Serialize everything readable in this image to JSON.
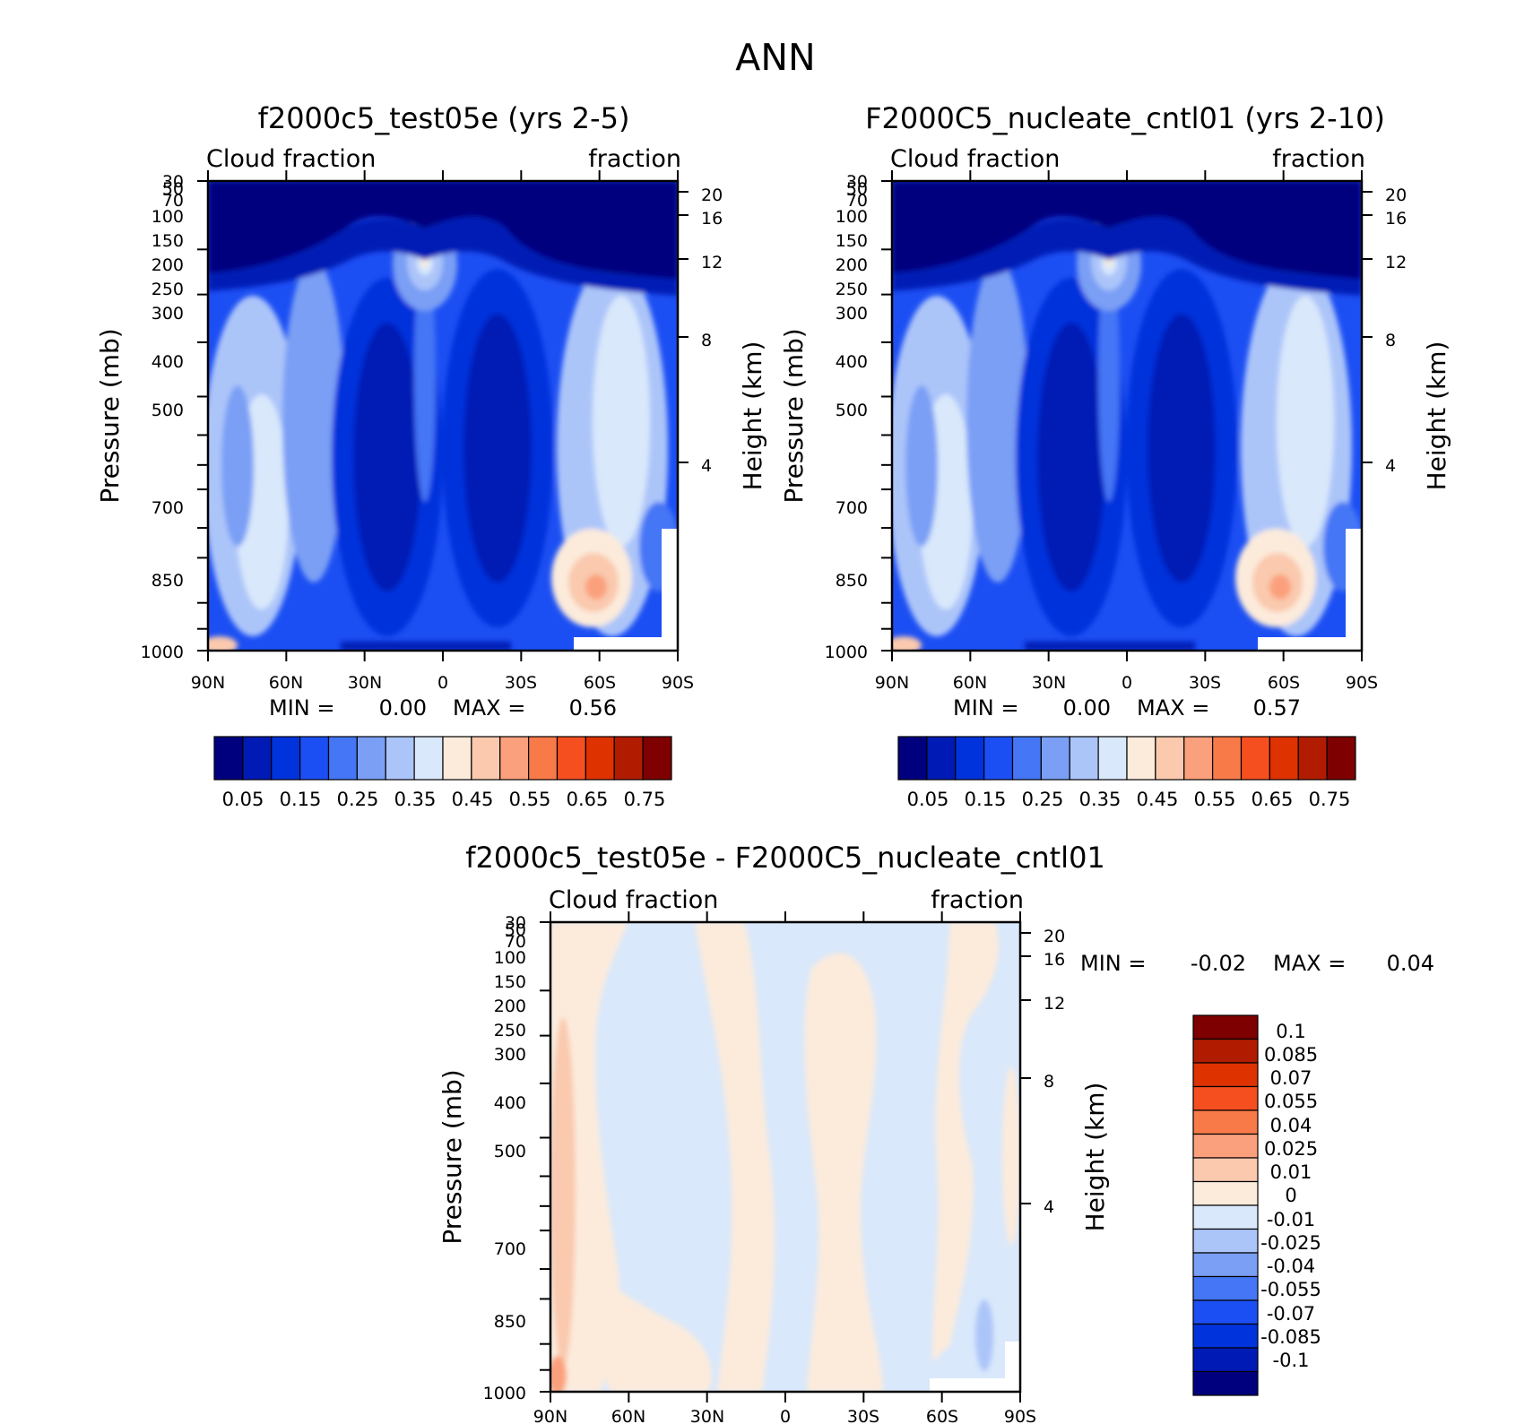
{
  "figure": {
    "title": "ANN"
  },
  "colors": {
    "scale": [
      "#00007f",
      "#001ab5",
      "#0033dc",
      "#1c4ff3",
      "#4476f5",
      "#7a9ff5",
      "#acc5f9",
      "#d9e8fb",
      "#fcebdb",
      "#fac9ae",
      "#fba07c",
      "#f87a49",
      "#f64f1f",
      "#de3200",
      "#b11c00",
      "#7e0000"
    ]
  },
  "chart_data": [
    {
      "type": "contour",
      "title": "f2000c5_test05e (yrs 2-5)",
      "left_label": "Cloud fraction",
      "right_label": "fraction",
      "ylabel": "Pressure (mb)",
      "y2label": "Height (km)",
      "y_ticks": [
        "30",
        "50",
        "70",
        "100",
        "150",
        "200",
        "250",
        "300",
        "400",
        "500",
        "700",
        "850",
        "1000"
      ],
      "y2_ticks": [
        "20",
        "16",
        "12",
        "8",
        "4"
      ],
      "x_ticks": [
        "90N",
        "60N",
        "30N",
        "0",
        "30S",
        "60S",
        "90S"
      ],
      "min_label": "MIN =",
      "min_value": "0.00",
      "max_label": "MAX =",
      "max_value": "0.56",
      "colorbar_labels": [
        "0.05",
        "0.15",
        "0.25",
        "0.35",
        "0.45",
        "0.55",
        "0.65",
        "0.75"
      ],
      "contour_levels": [
        0.05,
        0.1,
        0.15,
        0.2,
        0.25,
        0.3,
        0.35,
        0.4,
        0.45,
        0.5,
        0.55,
        0.6,
        0.65,
        0.7,
        0.75
      ],
      "ylim": [
        1000,
        30
      ],
      "xlim": [
        "90N",
        "90S"
      ]
    },
    {
      "type": "contour",
      "title": "F2000C5_nucleate_cntl01 (yrs 2-10)",
      "left_label": "Cloud fraction",
      "right_label": "fraction",
      "ylabel": "Pressure (mb)",
      "y2label": "Height (km)",
      "y_ticks": [
        "30",
        "50",
        "70",
        "100",
        "150",
        "200",
        "250",
        "300",
        "400",
        "500",
        "700",
        "850",
        "1000"
      ],
      "y2_ticks": [
        "20",
        "16",
        "12",
        "8",
        "4"
      ],
      "x_ticks": [
        "90N",
        "60N",
        "30N",
        "0",
        "30S",
        "60S",
        "90S"
      ],
      "min_label": "MIN =",
      "min_value": "0.00",
      "max_label": "MAX =",
      "max_value": "0.57",
      "colorbar_labels": [
        "0.05",
        "0.15",
        "0.25",
        "0.35",
        "0.45",
        "0.55",
        "0.65",
        "0.75"
      ],
      "contour_levels": [
        0.05,
        0.1,
        0.15,
        0.2,
        0.25,
        0.3,
        0.35,
        0.4,
        0.45,
        0.5,
        0.55,
        0.6,
        0.65,
        0.7,
        0.75
      ],
      "ylim": [
        1000,
        30
      ],
      "xlim": [
        "90N",
        "90S"
      ]
    },
    {
      "type": "contour",
      "title": "f2000c5_test05e - F2000C5_nucleate_cntl01",
      "left_label": "Cloud fraction",
      "right_label": "fraction",
      "ylabel": "Pressure (mb)",
      "y2label": "Height (km)",
      "y_ticks": [
        "30",
        "50",
        "70",
        "100",
        "150",
        "200",
        "250",
        "300",
        "400",
        "500",
        "700",
        "850",
        "1000"
      ],
      "y2_ticks": [
        "20",
        "16",
        "12",
        "8",
        "4"
      ],
      "x_ticks": [
        "90N",
        "60N",
        "30N",
        "0",
        "30S",
        "60S",
        "90S"
      ],
      "min_label": "MIN =",
      "min_value": "-0.02",
      "max_label": "MAX =",
      "max_value": "0.04",
      "colorbar_labels": [
        "0.1",
        "0.085",
        "0.07",
        "0.055",
        "0.04",
        "0.025",
        "0.01",
        "0",
        "-0.01",
        "-0.025",
        "-0.04",
        "-0.055",
        "-0.07",
        "-0.085",
        "-0.1"
      ],
      "contour_levels": [
        -0.1,
        -0.085,
        -0.07,
        -0.055,
        -0.04,
        -0.025,
        -0.01,
        0,
        0.01,
        0.025,
        0.04,
        0.055,
        0.07,
        0.085,
        0.1
      ],
      "ylim": [
        1000,
        30
      ],
      "xlim": [
        "90N",
        "90S"
      ]
    }
  ]
}
